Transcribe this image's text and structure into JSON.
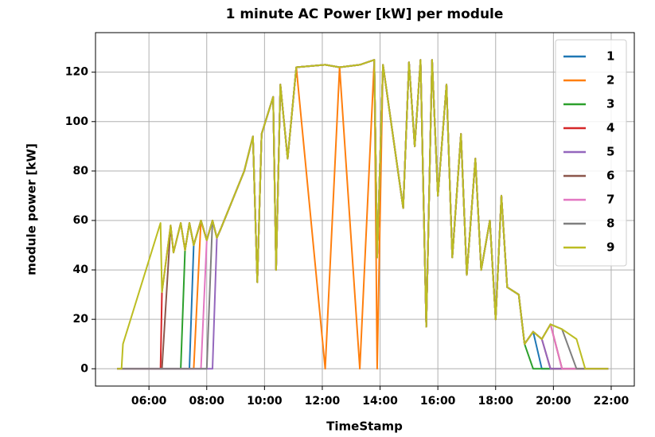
{
  "chart_data": {
    "type": "line",
    "title": "1 minute AC Power [kW] per module",
    "xlabel": "TimeStamp",
    "ylabel": "module power [kW]",
    "x": [
      4.9,
      5.05,
      5.1,
      6.4,
      6.45,
      6.75,
      6.85,
      7.1,
      7.25,
      7.4,
      7.55,
      7.8,
      8.0,
      8.2,
      8.35,
      8.5,
      9.3,
      9.6,
      9.75,
      9.9,
      10.3,
      10.4,
      10.55,
      10.8,
      11.1,
      12.1,
      12.6,
      13.3,
      13.8,
      13.9,
      14.1,
      14.8,
      15.0,
      15.2,
      15.4,
      15.6,
      15.8,
      16.0,
      16.3,
      16.5,
      16.8,
      17.0,
      17.3,
      17.5,
      17.8,
      18.0,
      18.2,
      18.4,
      18.8,
      19.0,
      19.3,
      19.6,
      19.9,
      20.3,
      20.8,
      21.1,
      21.7,
      21.9
    ],
    "series": [
      {
        "name": "1",
        "color": "#1f77b4",
        "values": [
          0,
          0,
          0,
          0,
          0,
          0,
          0,
          0,
          0,
          0,
          50,
          60,
          52,
          60,
          53,
          57,
          80,
          94,
          35,
          95,
          110,
          40,
          115,
          85,
          122,
          123,
          122,
          123,
          125,
          45,
          123,
          65,
          124,
          90,
          125,
          17,
          125,
          70,
          115,
          45,
          95,
          38,
          85,
          40,
          60,
          20,
          70,
          33,
          30,
          10,
          15,
          0,
          0,
          0,
          0,
          0,
          0,
          0
        ]
      },
      {
        "name": "2",
        "color": "#ff7f0e",
        "values": [
          0,
          0,
          0,
          0,
          0,
          0,
          0,
          0,
          0,
          0,
          0,
          60,
          52,
          60,
          53,
          57,
          80,
          94,
          35,
          95,
          110,
          40,
          115,
          85,
          122,
          0,
          122,
          0,
          125,
          0,
          123,
          65,
          124,
          90,
          125,
          17,
          125,
          70,
          115,
          45,
          95,
          38,
          85,
          40,
          60,
          20,
          70,
          33,
          30,
          10,
          15,
          12,
          18,
          0,
          0,
          0,
          0,
          0
        ]
      },
      {
        "name": "3",
        "color": "#2ca02c",
        "values": [
          0,
          0,
          0,
          0,
          0,
          0,
          0,
          0,
          48,
          59,
          50,
          60,
          52,
          60,
          53,
          57,
          80,
          94,
          35,
          95,
          110,
          40,
          115,
          85,
          122,
          123,
          122,
          123,
          125,
          45,
          123,
          65,
          124,
          90,
          125,
          17,
          125,
          70,
          115,
          45,
          95,
          38,
          85,
          40,
          60,
          20,
          70,
          33,
          30,
          10,
          0,
          0,
          0,
          0,
          0,
          0,
          0,
          0
        ]
      },
      {
        "name": "4",
        "color": "#d62728",
        "values": [
          0,
          0,
          0,
          0,
          31,
          58,
          47,
          59,
          48,
          59,
          50,
          60,
          52,
          60,
          53,
          57,
          80,
          94,
          35,
          95,
          110,
          40,
          115,
          85,
          122,
          123,
          122,
          123,
          125,
          45,
          123,
          65,
          124,
          90,
          125,
          17,
          125,
          70,
          115,
          45,
          95,
          38,
          85,
          40,
          60,
          20,
          70,
          33,
          30,
          10,
          15,
          12,
          0,
          0,
          0,
          0,
          0,
          0
        ]
      },
      {
        "name": "5",
        "color": "#9467bd",
        "values": [
          0,
          0,
          0,
          0,
          0,
          0,
          0,
          0,
          0,
          0,
          0,
          0,
          0,
          0,
          53,
          57,
          80,
          94,
          35,
          95,
          110,
          40,
          115,
          85,
          122,
          123,
          122,
          123,
          125,
          45,
          123,
          65,
          124,
          90,
          125,
          17,
          125,
          70,
          115,
          45,
          95,
          38,
          85,
          40,
          60,
          20,
          70,
          33,
          30,
          10,
          15,
          12,
          0,
          0,
          0,
          0,
          0,
          0
        ]
      },
      {
        "name": "6",
        "color": "#8c564b",
        "values": [
          0,
          0,
          0,
          0,
          0,
          58,
          47,
          59,
          48,
          59,
          50,
          60,
          52,
          60,
          53,
          57,
          80,
          94,
          35,
          95,
          110,
          40,
          115,
          85,
          122,
          123,
          122,
          123,
          125,
          45,
          123,
          65,
          124,
          90,
          125,
          17,
          125,
          70,
          115,
          45,
          95,
          38,
          85,
          40,
          60,
          20,
          70,
          33,
          30,
          10,
          15,
          12,
          18,
          0,
          0,
          0,
          0,
          0
        ]
      },
      {
        "name": "7",
        "color": "#e377c2",
        "values": [
          0,
          0,
          0,
          0,
          0,
          0,
          0,
          0,
          0,
          0,
          0,
          0,
          52,
          60,
          53,
          57,
          80,
          94,
          35,
          95,
          110,
          40,
          115,
          85,
          122,
          123,
          122,
          123,
          125,
          45,
          123,
          65,
          124,
          90,
          125,
          17,
          125,
          70,
          115,
          45,
          95,
          38,
          85,
          40,
          60,
          20,
          70,
          33,
          30,
          10,
          15,
          12,
          18,
          0,
          0,
          0,
          0,
          0
        ]
      },
      {
        "name": "8",
        "color": "#7f7f7f",
        "values": [
          0,
          0,
          0,
          0,
          0,
          0,
          0,
          0,
          0,
          0,
          0,
          0,
          0,
          60,
          53,
          57,
          80,
          94,
          35,
          95,
          110,
          40,
          115,
          85,
          122,
          123,
          122,
          123,
          125,
          45,
          123,
          65,
          124,
          90,
          125,
          17,
          125,
          70,
          115,
          45,
          95,
          38,
          85,
          40,
          60,
          20,
          70,
          33,
          30,
          10,
          15,
          12,
          18,
          16,
          0,
          0,
          0,
          0
        ]
      },
      {
        "name": "9",
        "color": "#bcbd22",
        "values": [
          0,
          0,
          10,
          59,
          31,
          58,
          47,
          59,
          48,
          59,
          50,
          60,
          52,
          60,
          53,
          57,
          80,
          94,
          35,
          95,
          110,
          40,
          115,
          85,
          122,
          123,
          122,
          123,
          125,
          45,
          123,
          65,
          124,
          90,
          125,
          17,
          125,
          70,
          115,
          45,
          95,
          38,
          85,
          40,
          60,
          20,
          70,
          33,
          30,
          10,
          15,
          12,
          18,
          16,
          12,
          0,
          0,
          0
        ]
      }
    ],
    "xlim": [
      4.15,
      22.8
    ],
    "xticks": [
      {
        "value": 6,
        "label": "06:00"
      },
      {
        "value": 8,
        "label": "08:00"
      },
      {
        "value": 10,
        "label": "10:00"
      },
      {
        "value": 12,
        "label": "12:00"
      },
      {
        "value": 14,
        "label": "14:00"
      },
      {
        "value": 16,
        "label": "16:00"
      },
      {
        "value": 18,
        "label": "18:00"
      },
      {
        "value": 20,
        "label": "20:00"
      },
      {
        "value": 22,
        "label": "22:00"
      }
    ],
    "ylim": [
      -7,
      136
    ],
    "yticks": [
      0,
      20,
      40,
      60,
      80,
      100,
      120
    ],
    "grid": true,
    "legend": "upper right"
  }
}
